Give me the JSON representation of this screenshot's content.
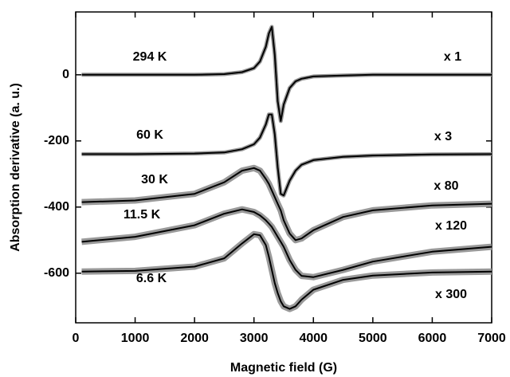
{
  "chart_data": {
    "type": "line",
    "x_label": "Magnetic field (G)",
    "y_label": "Absorption derivative (a. u.)",
    "xlim": [
      0,
      7000
    ],
    "ylim": [
      -750,
      190
    ],
    "xticks": [
      0,
      1000,
      2000,
      3000,
      4000,
      5000,
      6000,
      7000
    ],
    "yticks": [
      0,
      -200,
      -400,
      -600
    ],
    "band_color": "#999999",
    "x": [
      100,
      1000,
      2000,
      2500,
      2800,
      3000,
      3100,
      3200,
      3250,
      3300,
      3350,
      3400,
      3450,
      3500,
      3600,
      3700,
      3800,
      4000,
      4500,
      5000,
      6000,
      7000
    ],
    "series": [
      {
        "name": "294 K",
        "scale": "x 1",
        "color": "#000000",
        "values": [
          0,
          0,
          0,
          2,
          8,
          20,
          40,
          85,
          125,
          145,
          60,
          -80,
          -140,
          -90,
          -40,
          -20,
          -12,
          -5,
          -2,
          0,
          0,
          0
        ]
      },
      {
        "name": "60 K",
        "scale": "x 3",
        "color": "#000000",
        "values": [
          -240,
          -240,
          -238,
          -235,
          -225,
          -210,
          -190,
          -150,
          -120,
          -120,
          -180,
          -280,
          -360,
          -365,
          -320,
          -290,
          -272,
          -258,
          -248,
          -244,
          -241,
          -240
        ]
      },
      {
        "name": "30 K",
        "scale": "x 80",
        "color": "#000000",
        "values": [
          -385,
          -380,
          -360,
          -325,
          -290,
          -282,
          -290,
          -315,
          -330,
          -350,
          -370,
          -390,
          -410,
          -440,
          -480,
          -500,
          -495,
          -470,
          -430,
          -410,
          -395,
          -390
        ]
      },
      {
        "name": "11.5 K",
        "scale": "x 120",
        "color": "#000000",
        "values": [
          -505,
          -490,
          -455,
          -420,
          -407,
          -415,
          -425,
          -440,
          -450,
          -460,
          -475,
          -490,
          -505,
          -520,
          -560,
          -590,
          -608,
          -612,
          -590,
          -565,
          -535,
          -520
        ]
      },
      {
        "name": "6.6 K",
        "scale": "x 300",
        "color": "#000000",
        "values": [
          -595,
          -593,
          -580,
          -555,
          -510,
          -482,
          -485,
          -515,
          -550,
          -590,
          -630,
          -660,
          -685,
          -700,
          -708,
          -700,
          -680,
          -650,
          -620,
          -607,
          -598,
          -595
        ]
      }
    ]
  }
}
